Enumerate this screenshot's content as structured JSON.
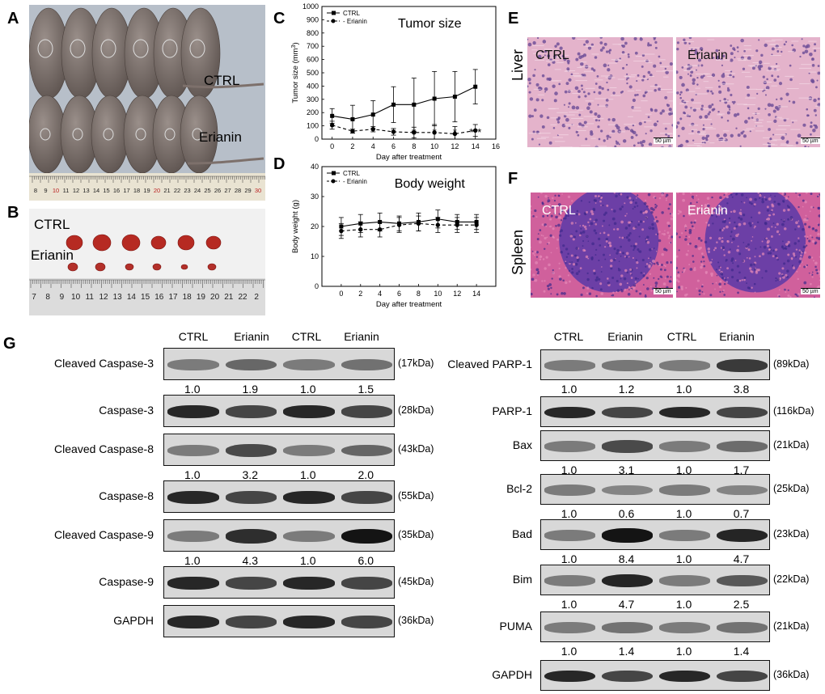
{
  "panels": {
    "A": "A",
    "B": "B",
    "C": "C",
    "D": "D",
    "E": "E",
    "F": "F",
    "G": "G"
  },
  "panelA": {
    "ctrl": "CTRL",
    "erianin": "Erianin",
    "ruler": [
      "8",
      "9",
      "10",
      "11",
      "12",
      "13",
      "14",
      "15",
      "16",
      "17",
      "18",
      "19",
      "20",
      "21",
      "22",
      "23",
      "24",
      "25",
      "26",
      "27",
      "28",
      "29",
      "30"
    ]
  },
  "panelB": {
    "ctrl": "CTRL",
    "erianin": "Erianin",
    "ruler": [
      "7",
      "8",
      "9",
      "10",
      "11",
      "12",
      "13",
      "14",
      "15",
      "16",
      "17",
      "18",
      "19",
      "20",
      "21",
      "22",
      "2"
    ]
  },
  "panelE": {
    "row": "Liver",
    "ctrl": "CTRL",
    "erianin": "Erianin",
    "scale": "50 µm"
  },
  "panelF": {
    "row": "Spleen",
    "ctrl": "CTRL",
    "erianin": "Erianin",
    "scale": "50 µm"
  },
  "chart_data": [
    {
      "type": "line",
      "title": "Tumor  size",
      "xlabel": "Day after treatment",
      "ylabel": "Tumor  size (mm",
      "ylabel_sup": "3",
      "ylabel_end": ")",
      "x": [
        0,
        2,
        4,
        6,
        8,
        10,
        12,
        14
      ],
      "xlim": [
        -1,
        16
      ],
      "ylim": [
        0,
        1000
      ],
      "xticks": [
        "0",
        "2",
        "4",
        "6",
        "8",
        "10",
        "12",
        "14",
        "16"
      ],
      "yticks": [
        "0",
        "100",
        "200",
        "300",
        "400",
        "500",
        "600",
        "700",
        "800",
        "900",
        "1000"
      ],
      "series": [
        {
          "name": "CTRL",
          "values": [
            175,
            150,
            185,
            260,
            260,
            305,
            320,
            395
          ],
          "err": [
            55,
            105,
            105,
            135,
            200,
            205,
            190,
            130
          ]
        },
        {
          "name": "- Erianin",
          "values": [
            105,
            60,
            75,
            55,
            50,
            50,
            40,
            65
          ],
          "err": [
            30,
            15,
            20,
            25,
            40,
            60,
            55,
            45
          ]
        }
      ],
      "annotations": [
        {
          "x": 6,
          "text": "*"
        },
        {
          "x": 8,
          "text": "*"
        },
        {
          "x": 10,
          "text": "*"
        },
        {
          "x": 12,
          "text": "*"
        },
        {
          "x": 14,
          "text": "***"
        }
      ],
      "legend": "top-left"
    },
    {
      "type": "line",
      "title": "Body  weight",
      "xlabel": "Day after treatment",
      "ylabel": "Body weight (g)",
      "x": [
        0,
        2,
        4,
        6,
        8,
        10,
        12,
        14
      ],
      "xlim": [
        -2,
        16
      ],
      "ylim": [
        0,
        40
      ],
      "xticks": [
        "0",
        "2",
        "4",
        "6",
        "8",
        "10",
        "12",
        "14"
      ],
      "yticks": [
        "0",
        "10",
        "20",
        "30",
        "40"
      ],
      "series": [
        {
          "name": "CTRL",
          "values": [
            20,
            21,
            21.5,
            21,
            21.5,
            22.5,
            21.5,
            21.5
          ],
          "err": [
            3,
            3,
            3,
            2.5,
            3,
            3,
            2.5,
            2.5
          ]
        },
        {
          "name": "- Erianin",
          "values": [
            18.5,
            19,
            19,
            20.5,
            21,
            20.5,
            20.5,
            20.5
          ],
          "err": [
            2.5,
            2.5,
            2.5,
            2.5,
            2.5,
            2.5,
            2.5,
            2.5
          ]
        }
      ],
      "legend": "top-left"
    }
  ],
  "blotsLeft": {
    "lanes": [
      "CTRL",
      "Erianin",
      "CTRL",
      "Erianin"
    ],
    "rows": [
      {
        "label": "Cleaved  Caspase-3",
        "kda": "(17kDa)",
        "ratios": [
          "1.0",
          "1.9",
          "1.0",
          "1.5"
        ]
      },
      {
        "label": "Caspase-3",
        "kda": "(28kDa)"
      },
      {
        "label": "Cleaved  Caspase-8",
        "kda": "(43kDa)",
        "ratios": [
          "1.0",
          "3.2",
          "1.0",
          "2.0"
        ]
      },
      {
        "label": "Caspase-8",
        "kda": "(55kDa)"
      },
      {
        "label": "Cleaved  Caspase-9",
        "kda": "(35kDa)",
        "ratios": [
          "1.0",
          "4.3",
          "1.0",
          "6.0"
        ]
      },
      {
        "label": "Caspase-9",
        "kda": "(45kDa)"
      },
      {
        "label": "GAPDH",
        "kda": "(36kDa)"
      }
    ]
  },
  "blotsRight": {
    "lanes": [
      "CTRL",
      "Erianin",
      "CTRL",
      "Erianin"
    ],
    "rows": [
      {
        "label": "Cleaved  PARP-1",
        "kda": "(89kDa)",
        "ratios": [
          "1.0",
          "1.2",
          "1.0",
          "3.8"
        ]
      },
      {
        "label": "PARP-1",
        "kda": "(116kDa)"
      },
      {
        "label": "Bax",
        "kda": "(21kDa)",
        "ratios": [
          "1.0",
          "3.1",
          "1.0",
          "1.7"
        ]
      },
      {
        "label": "Bcl-2",
        "kda": "(25kDa)",
        "ratios": [
          "1.0",
          "0.6",
          "1.0",
          "0.7"
        ]
      },
      {
        "label": "Bad",
        "kda": "(23kDa)",
        "ratios": [
          "1.0",
          "8.4",
          "1.0",
          "4.7"
        ]
      },
      {
        "label": "Bim",
        "kda": "(22kDa)",
        "ratios": [
          "1.0",
          "4.7",
          "1.0",
          "2.5"
        ]
      },
      {
        "label": "PUMA",
        "kda": "(21kDa)",
        "ratios": [
          "1.0",
          "1.4",
          "1.0",
          "1.4"
        ]
      },
      {
        "label": "GAPDH",
        "kda": "(36kDa)"
      }
    ]
  }
}
